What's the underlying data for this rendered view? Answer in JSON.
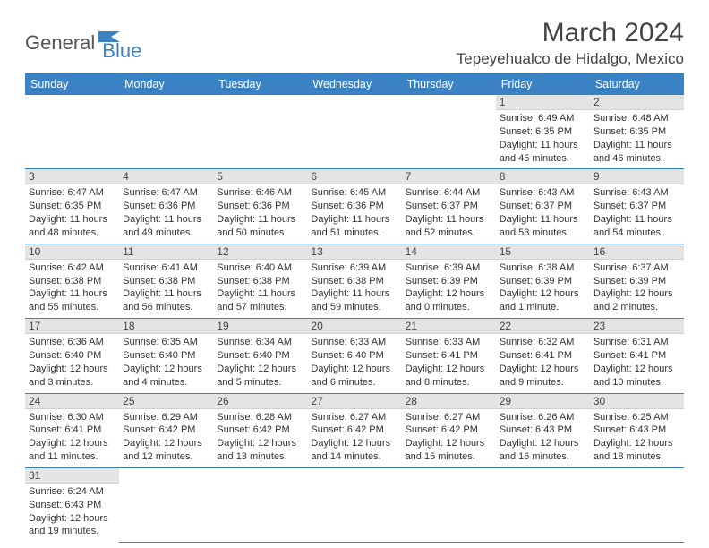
{
  "logo": {
    "text1": "General",
    "text2": "Blue"
  },
  "title": "March 2024",
  "location": "Tepeyehualco de Hidalgo, Mexico",
  "colors": {
    "header_bg": "#3b82c4",
    "header_text": "#ffffff",
    "daynum_bg": "#e4e4e4",
    "row_border": "#3b82c4",
    "body_text": "#333333"
  },
  "day_headers": [
    "Sunday",
    "Monday",
    "Tuesday",
    "Wednesday",
    "Thursday",
    "Friday",
    "Saturday"
  ],
  "weeks": [
    [
      null,
      null,
      null,
      null,
      null,
      {
        "n": "1",
        "sunrise": "6:49 AM",
        "sunset": "6:35 PM",
        "dl": "11 hours and 45 minutes."
      },
      {
        "n": "2",
        "sunrise": "6:48 AM",
        "sunset": "6:35 PM",
        "dl": "11 hours and 46 minutes."
      }
    ],
    [
      {
        "n": "3",
        "sunrise": "6:47 AM",
        "sunset": "6:35 PM",
        "dl": "11 hours and 48 minutes."
      },
      {
        "n": "4",
        "sunrise": "6:47 AM",
        "sunset": "6:36 PM",
        "dl": "11 hours and 49 minutes."
      },
      {
        "n": "5",
        "sunrise": "6:46 AM",
        "sunset": "6:36 PM",
        "dl": "11 hours and 50 minutes."
      },
      {
        "n": "6",
        "sunrise": "6:45 AM",
        "sunset": "6:36 PM",
        "dl": "11 hours and 51 minutes."
      },
      {
        "n": "7",
        "sunrise": "6:44 AM",
        "sunset": "6:37 PM",
        "dl": "11 hours and 52 minutes."
      },
      {
        "n": "8",
        "sunrise": "6:43 AM",
        "sunset": "6:37 PM",
        "dl": "11 hours and 53 minutes."
      },
      {
        "n": "9",
        "sunrise": "6:43 AM",
        "sunset": "6:37 PM",
        "dl": "11 hours and 54 minutes."
      }
    ],
    [
      {
        "n": "10",
        "sunrise": "6:42 AM",
        "sunset": "6:38 PM",
        "dl": "11 hours and 55 minutes."
      },
      {
        "n": "11",
        "sunrise": "6:41 AM",
        "sunset": "6:38 PM",
        "dl": "11 hours and 56 minutes."
      },
      {
        "n": "12",
        "sunrise": "6:40 AM",
        "sunset": "6:38 PM",
        "dl": "11 hours and 57 minutes."
      },
      {
        "n": "13",
        "sunrise": "6:39 AM",
        "sunset": "6:38 PM",
        "dl": "11 hours and 59 minutes."
      },
      {
        "n": "14",
        "sunrise": "6:39 AM",
        "sunset": "6:39 PM",
        "dl": "12 hours and 0 minutes."
      },
      {
        "n": "15",
        "sunrise": "6:38 AM",
        "sunset": "6:39 PM",
        "dl": "12 hours and 1 minute."
      },
      {
        "n": "16",
        "sunrise": "6:37 AM",
        "sunset": "6:39 PM",
        "dl": "12 hours and 2 minutes."
      }
    ],
    [
      {
        "n": "17",
        "sunrise": "6:36 AM",
        "sunset": "6:40 PM",
        "dl": "12 hours and 3 minutes."
      },
      {
        "n": "18",
        "sunrise": "6:35 AM",
        "sunset": "6:40 PM",
        "dl": "12 hours and 4 minutes."
      },
      {
        "n": "19",
        "sunrise": "6:34 AM",
        "sunset": "6:40 PM",
        "dl": "12 hours and 5 minutes."
      },
      {
        "n": "20",
        "sunrise": "6:33 AM",
        "sunset": "6:40 PM",
        "dl": "12 hours and 6 minutes."
      },
      {
        "n": "21",
        "sunrise": "6:33 AM",
        "sunset": "6:41 PM",
        "dl": "12 hours and 8 minutes."
      },
      {
        "n": "22",
        "sunrise": "6:32 AM",
        "sunset": "6:41 PM",
        "dl": "12 hours and 9 minutes."
      },
      {
        "n": "23",
        "sunrise": "6:31 AM",
        "sunset": "6:41 PM",
        "dl": "12 hours and 10 minutes."
      }
    ],
    [
      {
        "n": "24",
        "sunrise": "6:30 AM",
        "sunset": "6:41 PM",
        "dl": "12 hours and 11 minutes."
      },
      {
        "n": "25",
        "sunrise": "6:29 AM",
        "sunset": "6:42 PM",
        "dl": "12 hours and 12 minutes."
      },
      {
        "n": "26",
        "sunrise": "6:28 AM",
        "sunset": "6:42 PM",
        "dl": "12 hours and 13 minutes."
      },
      {
        "n": "27",
        "sunrise": "6:27 AM",
        "sunset": "6:42 PM",
        "dl": "12 hours and 14 minutes."
      },
      {
        "n": "28",
        "sunrise": "6:27 AM",
        "sunset": "6:42 PM",
        "dl": "12 hours and 15 minutes."
      },
      {
        "n": "29",
        "sunrise": "6:26 AM",
        "sunset": "6:43 PM",
        "dl": "12 hours and 16 minutes."
      },
      {
        "n": "30",
        "sunrise": "6:25 AM",
        "sunset": "6:43 PM",
        "dl": "12 hours and 18 minutes."
      }
    ],
    [
      {
        "n": "31",
        "sunrise": "6:24 AM",
        "sunset": "6:43 PM",
        "dl": "12 hours and 19 minutes."
      },
      null,
      null,
      null,
      null,
      null,
      null
    ]
  ]
}
